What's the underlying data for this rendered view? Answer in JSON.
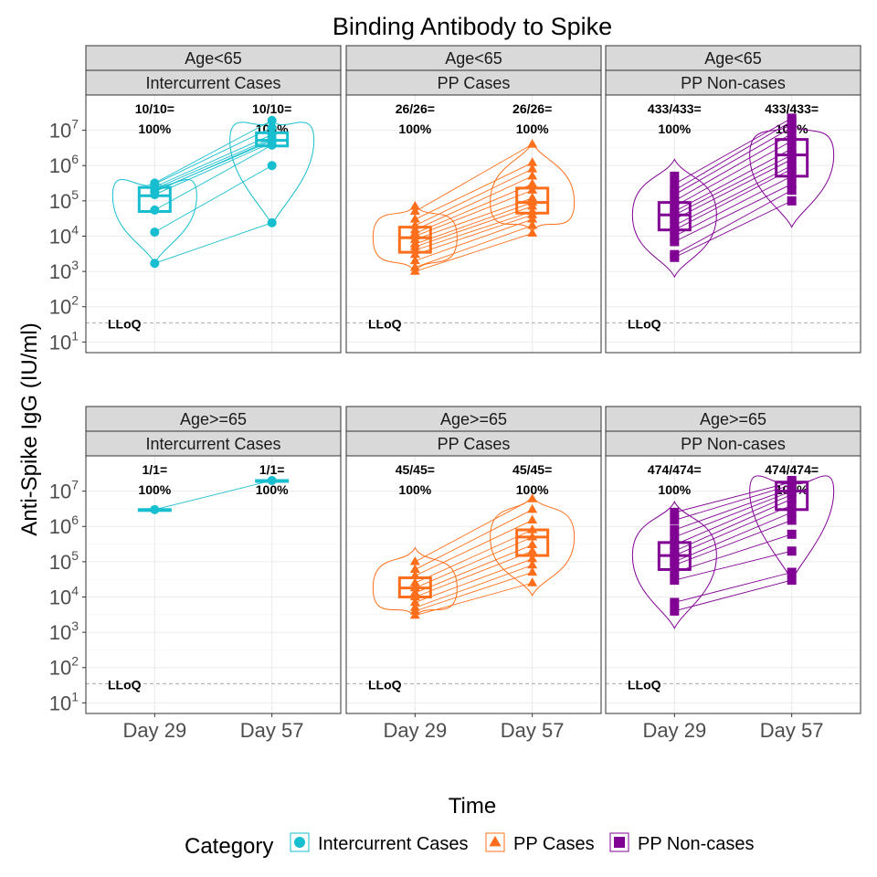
{
  "chart_data": {
    "type": "box",
    "title": "Binding Antibody to Spike",
    "xlabel": "Time",
    "ylabel": "Anti-Spike IgG (IU/ml)",
    "y_scale": "log10",
    "y_ticks": [
      {
        "base": "10",
        "exp": "1",
        "value": 10
      },
      {
        "base": "10",
        "exp": "2",
        "value": 100
      },
      {
        "base": "10",
        "exp": "3",
        "value": 1000
      },
      {
        "base": "10",
        "exp": "4",
        "value": 10000
      },
      {
        "base": "10",
        "exp": "5",
        "value": 100000
      },
      {
        "base": "10",
        "exp": "6",
        "value": 1000000
      },
      {
        "base": "10",
        "exp": "7",
        "value": 10000000
      }
    ],
    "ylim": [
      5,
      100000000
    ],
    "x_categories": [
      "Day 29",
      "Day 57"
    ],
    "lloq": {
      "label": "LLoQ",
      "value": 35
    },
    "legend": {
      "title": "Category",
      "position": "bottom",
      "items": [
        {
          "label": "Intercurrent Cases",
          "color": "#17BECF",
          "shape": "circle"
        },
        {
          "label": "PP Cases",
          "color": "#FF6F1B",
          "shape": "triangle"
        },
        {
          "label": "PP Non-cases",
          "color": "#810094",
          "shape": "square"
        }
      ]
    },
    "grid": true,
    "panels": [
      {
        "strip_top": "Age<65",
        "strip_bottom": "Intercurrent Cases",
        "category": 0,
        "annotations": [
          {
            "line1": "10/10=",
            "line2": "100%"
          },
          {
            "line1": "10/10=",
            "line2": "100%"
          }
        ],
        "boxes": [
          {
            "q1": 50000,
            "median": 140000,
            "q3": 240000
          },
          {
            "q1": 3600000,
            "median": 5200000,
            "q3": 8500000
          }
        ],
        "violins": [
          {
            "min": 1700,
            "max": 380000
          },
          {
            "min": 21000,
            "max": 21000000
          }
        ],
        "points": [
          [
            1700,
            13000,
            55000,
            150000,
            190000,
            220000,
            250000,
            300000,
            320000,
            180000
          ],
          [
            24000,
            1000000,
            3800000,
            4500000,
            5000000,
            6000000,
            7500000,
            12000000,
            19000000,
            5500000
          ]
        ]
      },
      {
        "strip_top": "Age<65",
        "strip_bottom": "PP Cases",
        "category": 1,
        "annotations": [
          {
            "line1": "26/26=",
            "line2": "100%"
          },
          {
            "line1": "26/26=",
            "line2": "100%"
          }
        ],
        "boxes": [
          {
            "q1": 3500,
            "median": 9000,
            "q3": 18000
          },
          {
            "q1": 45000,
            "median": 90000,
            "q3": 230000
          }
        ],
        "violins": [
          {
            "min": 950,
            "max": 80000
          },
          {
            "min": 13000,
            "max": 4500000
          }
        ],
        "points": [
          [
            1000,
            1300,
            2000,
            3000,
            4000,
            5000,
            6000,
            8000,
            10000,
            12000,
            15000,
            20000,
            30000,
            50000,
            70000
          ],
          [
            12000,
            20000,
            30000,
            40000,
            50000,
            70000,
            90000,
            120000,
            200000,
            300000,
            500000,
            800000,
            1200000,
            4000000
          ]
        ]
      },
      {
        "strip_top": "Age<65",
        "strip_bottom": "PP Non-cases",
        "category": 2,
        "annotations": [
          {
            "line1": "433/433=",
            "line2": "100%"
          },
          {
            "line1": "433/433=",
            "line2": "100%"
          }
        ],
        "boxes": [
          {
            "q1": 15000,
            "median": 40000,
            "q3": 90000
          },
          {
            "q1": 500000,
            "median": 2000000,
            "q3": 5500000
          }
        ],
        "violins": [
          {
            "min": 700,
            "max": 1500000
          },
          {
            "min": 18000,
            "max": 18000000
          }
        ],
        "points": [
          [
            2500,
            3000,
            7000,
            10000,
            15000,
            20000,
            30000,
            40000,
            50000,
            70000,
            100000,
            150000,
            200000,
            300000,
            500000
          ],
          [
            100000,
            200000,
            300000,
            500000,
            800000,
            1000000,
            1500000,
            2000000,
            3000000,
            5000000,
            8000000,
            12000000,
            18000000,
            22000000
          ]
        ]
      },
      {
        "strip_top": "Age>=65",
        "strip_bottom": "Intercurrent Cases",
        "category": 0,
        "annotations": [
          {
            "line1": "1/1=",
            "line2": "100%"
          },
          {
            "line1": "1/1=",
            "line2": "100%"
          }
        ],
        "boxes": [
          {
            "q1": 3000000,
            "median": 3000000,
            "q3": 3000000
          },
          {
            "q1": 20000000,
            "median": 20000000,
            "q3": 20000000
          }
        ],
        "violins": [],
        "points": [
          [
            3000000
          ],
          [
            20000000
          ]
        ]
      },
      {
        "strip_top": "Age>=65",
        "strip_bottom": "PP Cases",
        "category": 1,
        "annotations": [
          {
            "line1": "45/45=",
            "line2": "100%"
          },
          {
            "line1": "45/45=",
            "line2": "100%"
          }
        ],
        "boxes": [
          {
            "q1": 10000,
            "median": 18000,
            "q3": 35000
          },
          {
            "q1": 150000,
            "median": 500000,
            "q3": 800000
          }
        ],
        "violins": [
          {
            "min": 2600,
            "max": 250000
          },
          {
            "min": 11000,
            "max": 7500000
          }
        ],
        "points": [
          [
            3000,
            4000,
            5000,
            7000,
            10000,
            13000,
            18000,
            25000,
            40000,
            60000,
            100000
          ],
          [
            25000,
            50000,
            80000,
            120000,
            200000,
            300000,
            500000,
            800000,
            1500000,
            3000000,
            6000000
          ]
        ]
      },
      {
        "strip_top": "Age>=65",
        "strip_bottom": "PP Non-cases",
        "category": 2,
        "annotations": [
          {
            "line1": "474/474=",
            "line2": "100%"
          },
          {
            "line1": "474/474=",
            "line2": "100%"
          }
        ],
        "boxes": [
          {
            "q1": 60000,
            "median": 150000,
            "q3": 350000
          },
          {
            "q1": 3000000,
            "median": 10000000,
            "q3": 18000000
          }
        ],
        "violins": [
          {
            "min": 1300,
            "max": 5000000
          },
          {
            "min": 30000,
            "max": 22000000
          }
        ],
        "points": [
          [
            4000,
            7000,
            30000,
            50000,
            80000,
            100000,
            150000,
            200000,
            300000,
            500000,
            800000,
            1500000,
            2500000
          ],
          [
            30000,
            50000,
            200000,
            600000,
            1500000,
            2500000,
            4000000,
            6000000,
            8000000,
            10000000,
            12000000,
            15000000,
            18000000,
            20000000
          ]
        ]
      }
    ]
  }
}
